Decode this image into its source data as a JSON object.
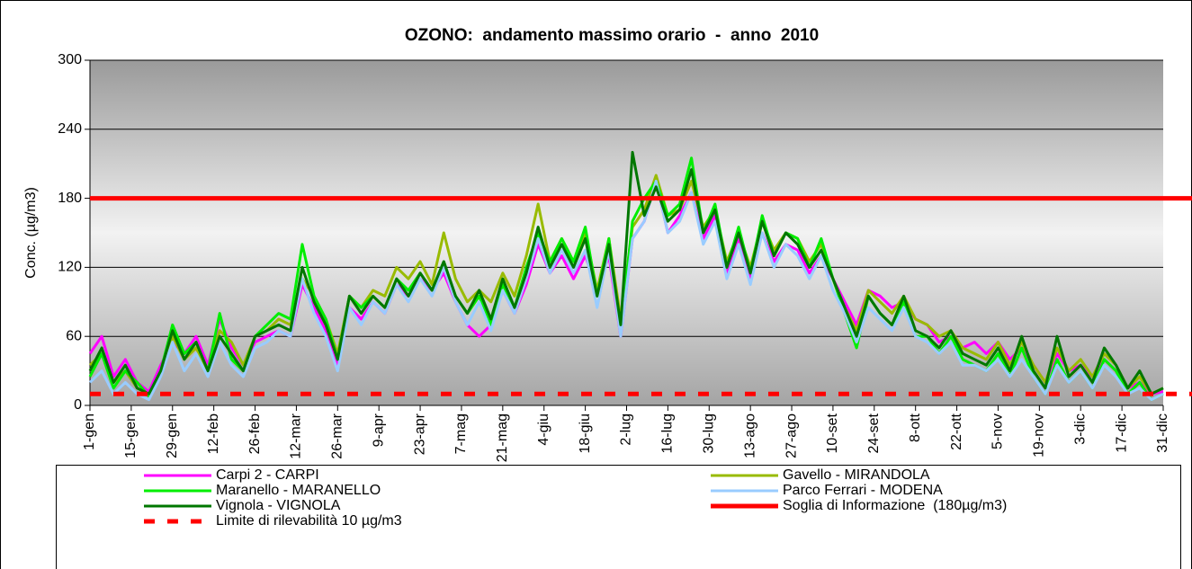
{
  "chart_data": {
    "type": "line",
    "title": "OZONO:  andamento massimo orario  -  anno  2010",
    "y_label": "Conc. (µg/m3)",
    "x": [
      0,
      4,
      8,
      12,
      16,
      20,
      24,
      28,
      32,
      36,
      40,
      44,
      48,
      52,
      56,
      60,
      64,
      68,
      72,
      76,
      80,
      84,
      88,
      92,
      96,
      100,
      104,
      108,
      112,
      116,
      120,
      124,
      128,
      132,
      136,
      140,
      144,
      148,
      152,
      156,
      160,
      164,
      168,
      172,
      176,
      180,
      184,
      188,
      192,
      196,
      200,
      204,
      208,
      212,
      216,
      220,
      224,
      228,
      232,
      236,
      240,
      244,
      248,
      252,
      256,
      260,
      264,
      268,
      272,
      276,
      280,
      284,
      288,
      292,
      296,
      300,
      304,
      308,
      312,
      316,
      320,
      324,
      328,
      332,
      336,
      340,
      344,
      348,
      352,
      356,
      360,
      364
    ],
    "xlim": [
      0,
      364
    ],
    "xticks": [
      {
        "value": 0,
        "label": "1-gen"
      },
      {
        "value": 14,
        "label": "15-gen"
      },
      {
        "value": 28,
        "label": "29-gen"
      },
      {
        "value": 42,
        "label": "12-feb"
      },
      {
        "value": 56,
        "label": "26-feb"
      },
      {
        "value": 70,
        "label": "12-mar"
      },
      {
        "value": 84,
        "label": "26-mar"
      },
      {
        "value": 98,
        "label": "9-apr"
      },
      {
        "value": 112,
        "label": "23-apr"
      },
      {
        "value": 126,
        "label": "7-mag"
      },
      {
        "value": 140,
        "label": "21-mag"
      },
      {
        "value": 154,
        "label": "4-giu"
      },
      {
        "value": 168,
        "label": "18-giu"
      },
      {
        "value": 182,
        "label": "2-lug"
      },
      {
        "value": 196,
        "label": "16-lug"
      },
      {
        "value": 210,
        "label": "30-lug"
      },
      {
        "value": 224,
        "label": "13-ago"
      },
      {
        "value": 238,
        "label": "27-ago"
      },
      {
        "value": 252,
        "label": "10-set"
      },
      {
        "value": 266,
        "label": "24-set"
      },
      {
        "value": 280,
        "label": "8-ott"
      },
      {
        "value": 294,
        "label": "22-ott"
      },
      {
        "value": 308,
        "label": "5-nov"
      },
      {
        "value": 322,
        "label": "19-nov"
      },
      {
        "value": 336,
        "label": "3-dic"
      },
      {
        "value": 350,
        "label": "17-dic"
      },
      {
        "value": 364,
        "label": "31-dic"
      }
    ],
    "ylim": [
      0,
      300
    ],
    "yticks": [
      0,
      60,
      120,
      180,
      240,
      300
    ],
    "grid": true,
    "series": [
      {
        "name": "Carpi 2 - CARPI",
        "color": "#ff00ff",
        "values": [
          45,
          60,
          25,
          40,
          20,
          12,
          35,
          55,
          45,
          60,
          35,
          75,
          50,
          35,
          55,
          60,
          65,
          60,
          105,
          85,
          65,
          35,
          85,
          75,
          90,
          80,
          105,
          95,
          110,
          100,
          115,
          90,
          70,
          60,
          70,
          100,
          80,
          105,
          140,
          115,
          130,
          110,
          130,
          100,
          130,
          60,
          145,
          160,
          195,
          150,
          165,
          185,
          145,
          165,
          115,
          145,
          110,
          150,
          125,
          140,
          135,
          115,
          130,
          110,
          90,
          70,
          100,
          95,
          85,
          90,
          75,
          70,
          55,
          60,
          50,
          55,
          45,
          55,
          40,
          50,
          35,
          20,
          45,
          30,
          35,
          25,
          40,
          30,
          15,
          20,
          10,
          12
        ]
      },
      {
        "name": "Gavello - MIRANDOLA",
        "color": "#99bb00",
        "values": [
          35,
          45,
          20,
          30,
          15,
          10,
          25,
          60,
          40,
          50,
          30,
          65,
          55,
          35,
          60,
          65,
          75,
          70,
          110,
          95,
          75,
          45,
          95,
          85,
          100,
          95,
          120,
          110,
          125,
          105,
          150,
          110,
          90,
          100,
          90,
          115,
          95,
          130,
          175,
          125,
          145,
          125,
          150,
          100,
          145,
          75,
          155,
          170,
          200,
          165,
          170,
          195,
          155,
          170,
          125,
          150,
          120,
          160,
          135,
          150,
          145,
          125,
          140,
          110,
          85,
          65,
          100,
          90,
          80,
          95,
          75,
          70,
          60,
          65,
          50,
          45,
          40,
          55,
          35,
          55,
          35,
          20,
          50,
          30,
          40,
          25,
          45,
          35,
          15,
          25,
          10,
          15
        ]
      },
      {
        "name": "Maranello - MARANELLO",
        "color": "#00ee00",
        "values": [
          25,
          45,
          15,
          30,
          20,
          8,
          30,
          70,
          45,
          55,
          30,
          80,
          40,
          30,
          60,
          70,
          80,
          75,
          140,
          95,
          75,
          40,
          95,
          85,
          95,
          85,
          110,
          100,
          115,
          100,
          125,
          95,
          80,
          95,
          70,
          105,
          85,
          120,
          150,
          125,
          145,
          125,
          155,
          95,
          145,
          65,
          160,
          180,
          195,
          165,
          175,
          215,
          150,
          175,
          120,
          155,
          115,
          165,
          130,
          150,
          145,
          120,
          145,
          110,
          80,
          50,
          95,
          80,
          70,
          90,
          60,
          60,
          45,
          60,
          40,
          35,
          30,
          45,
          25,
          50,
          25,
          10,
          40,
          20,
          30,
          15,
          40,
          30,
          10,
          20,
          5,
          10
        ]
      },
      {
        "name": "Parco Ferrari - MODENA",
        "color": "#99ccff",
        "values": [
          20,
          30,
          10,
          20,
          10,
          5,
          25,
          55,
          30,
          45,
          25,
          55,
          35,
          25,
          50,
          55,
          65,
          60,
          110,
          80,
          60,
          30,
          85,
          70,
          90,
          80,
          105,
          90,
          110,
          95,
          120,
          90,
          70,
          90,
          65,
          100,
          80,
          110,
          145,
          115,
          135,
          115,
          135,
          85,
          135,
          60,
          145,
          160,
          195,
          150,
          160,
          185,
          140,
          160,
          110,
          140,
          105,
          150,
          120,
          140,
          130,
          110,
          130,
          100,
          80,
          55,
          85,
          75,
          65,
          85,
          60,
          55,
          45,
          55,
          35,
          35,
          30,
          40,
          25,
          40,
          25,
          10,
          35,
          20,
          30,
          15,
          35,
          25,
          10,
          15,
          5,
          10
        ]
      },
      {
        "name": "Vignola - VIGNOLA",
        "color": "#007700",
        "values": [
          30,
          50,
          20,
          35,
          15,
          10,
          30,
          65,
          40,
          55,
          30,
          60,
          45,
          30,
          60,
          65,
          70,
          65,
          120,
          90,
          70,
          40,
          95,
          80,
          95,
          85,
          110,
          95,
          115,
          100,
          125,
          95,
          80,
          100,
          75,
          110,
          85,
          115,
          155,
          120,
          140,
          120,
          145,
          95,
          140,
          70,
          220,
          165,
          190,
          160,
          170,
          205,
          150,
          170,
          120,
          150,
          115,
          160,
          130,
          150,
          140,
          120,
          135,
          110,
          85,
          60,
          95,
          80,
          70,
          95,
          65,
          60,
          50,
          65,
          45,
          40,
          35,
          50,
          30,
          60,
          30,
          15,
          60,
          25,
          35,
          20,
          50,
          35,
          15,
          30,
          10,
          15
        ]
      }
    ],
    "reference_lines": [
      {
        "name": "Soglia di Informazione  (180µg/m3)",
        "value": 180,
        "color": "#ff0000",
        "style": "solid"
      },
      {
        "name": "Limite di rilevabilità 10 µg/m3",
        "value": 10,
        "color": "#ff0000",
        "style": "dashed"
      }
    ]
  }
}
